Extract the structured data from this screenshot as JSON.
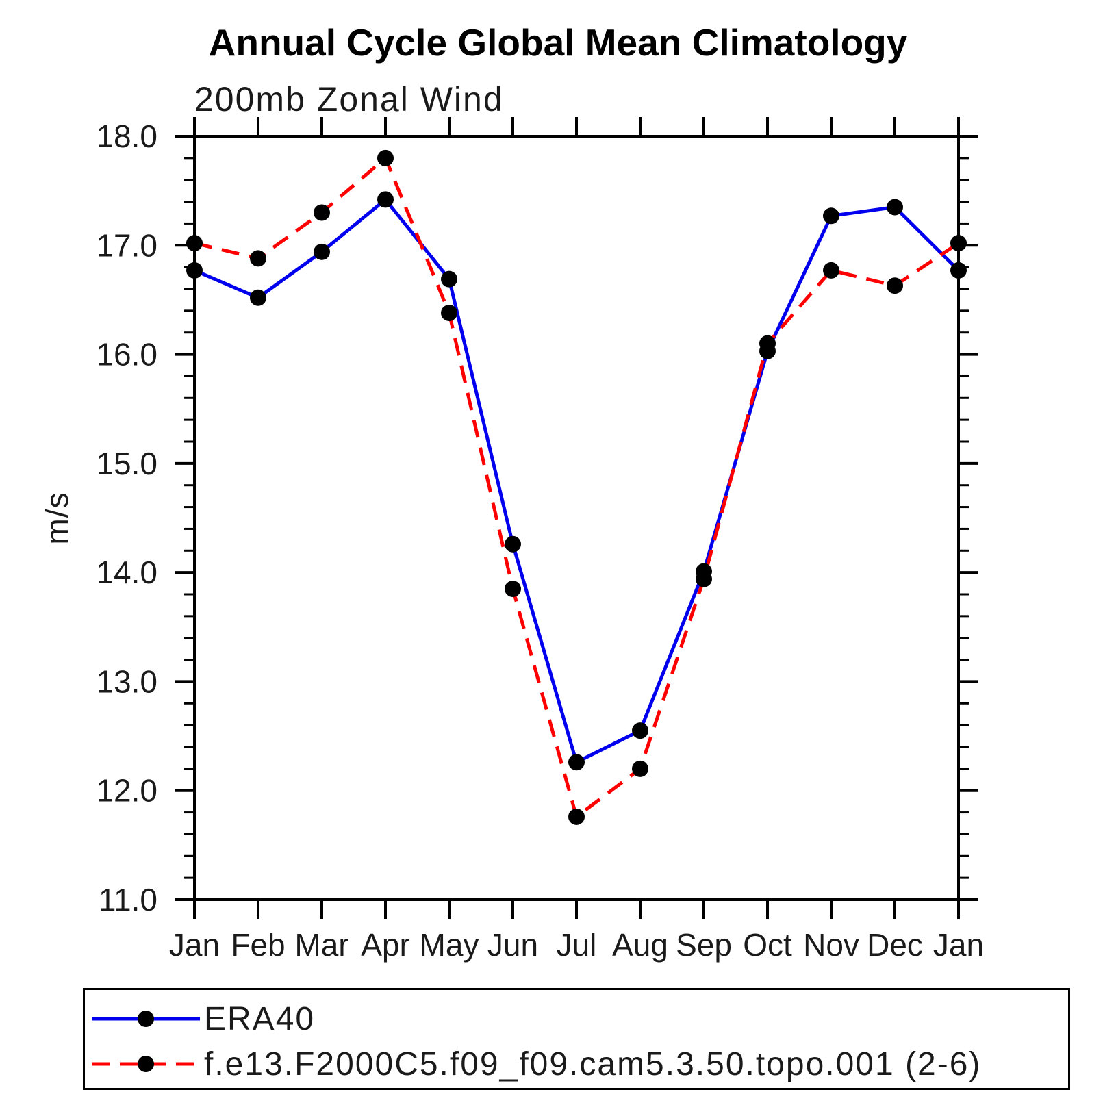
{
  "title": "Annual Cycle Global Mean Climatology",
  "subtitle": "200mb Zonal Wind",
  "y_axis_label": "m/s",
  "legend": {
    "entries": [
      {
        "label": "ERA40",
        "color": "#0000ee",
        "style": "solid"
      },
      {
        "label": "f.e13.F2000C5.f09_f09.cam5.3.50.topo.001 (2-6)",
        "color": "#ff0000",
        "style": "dashed"
      }
    ],
    "marker_color": "#000000"
  },
  "chart_data": {
    "type": "line",
    "title": "Annual Cycle Global Mean Climatology",
    "subtitle": "200mb Zonal Wind",
    "xlabel": "",
    "ylabel": "m/s",
    "categories": [
      "Jan",
      "Feb",
      "Mar",
      "Apr",
      "May",
      "Jun",
      "Jul",
      "Aug",
      "Sep",
      "Oct",
      "Nov",
      "Dec",
      "Jan"
    ],
    "series": [
      {
        "name": "ERA40",
        "color": "#0000ee",
        "style": "solid",
        "values": [
          16.77,
          16.52,
          16.94,
          17.42,
          16.69,
          14.26,
          12.26,
          12.55,
          14.01,
          16.03,
          17.27,
          17.35,
          16.77
        ]
      },
      {
        "name": "f.e13.F2000C5.f09_f09.cam5.3.50.topo.001 (2-6)",
        "color": "#ff0000",
        "style": "dashed",
        "values": [
          17.02,
          16.88,
          17.3,
          17.8,
          16.38,
          13.85,
          11.76,
          12.2,
          13.94,
          16.1,
          16.77,
          16.63,
          17.02
        ]
      }
    ],
    "ylim": [
      11.0,
      18.0
    ],
    "ytick_interval": 1.0,
    "yminor_interval": 0.2,
    "ytick_labels": [
      "11.0",
      "12.0",
      "13.0",
      "14.0",
      "15.0",
      "16.0",
      "17.0",
      "18.0"
    ],
    "marker": "filled-circle",
    "marker_color": "#000000",
    "grid": false,
    "legend_position": "bottom"
  }
}
